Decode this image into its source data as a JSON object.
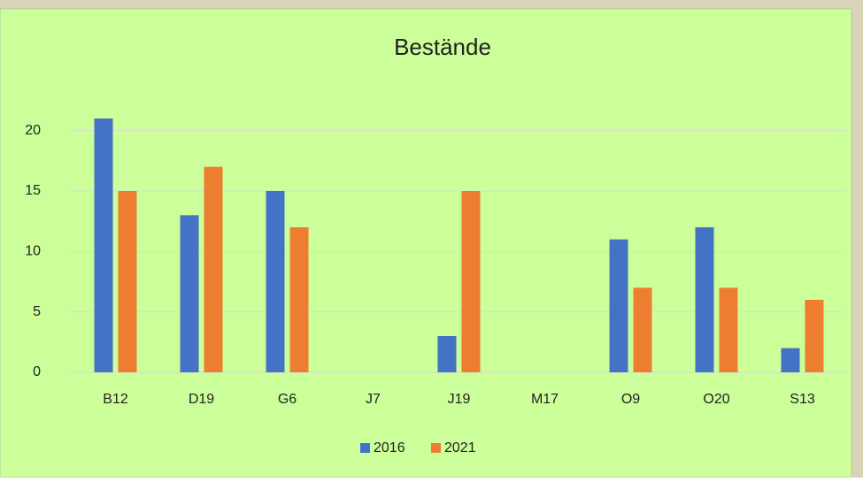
{
  "chart_data": {
    "type": "bar",
    "title": "Bestände",
    "categories": [
      "B12",
      "D19",
      "G6",
      "J7",
      "J19",
      "M17",
      "O9",
      "O20",
      "S13"
    ],
    "series": [
      {
        "name": "2016",
        "color": "#4472c4",
        "values": [
          21,
          13,
          15,
          0,
          3,
          0,
          11,
          12,
          2
        ]
      },
      {
        "name": "2021",
        "color": "#ed7d31",
        "values": [
          15,
          17,
          12,
          0,
          15,
          0,
          7,
          7,
          6
        ]
      }
    ],
    "ylim": [
      0,
      21
    ],
    "yticks": [
      0,
      5,
      10,
      15,
      20
    ],
    "grid": true,
    "legend": "bottom"
  }
}
